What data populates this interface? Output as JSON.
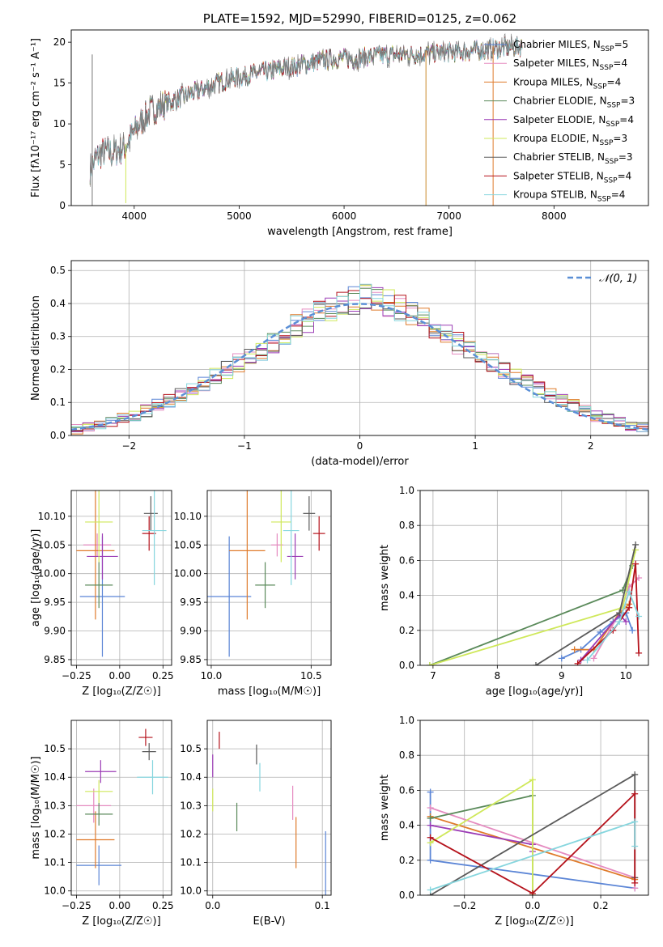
{
  "colors": {
    "chabrier_miles": "#5b85d6",
    "salpeter_miles": "#e58bc0",
    "kroupa_miles": "#df7a2a",
    "chabrier_elodie": "#5a8a5a",
    "salpeter_elodie": "#9b3bb5",
    "kroupa_elodie": "#cfe85a",
    "chabrier_stelib": "#5a5a5a",
    "salpeter_stelib": "#b5121b",
    "kroupa_stelib": "#86d6de",
    "gauss": "#5b8fd6"
  },
  "chart_data": [
    {
      "id": "spectrum",
      "type": "line",
      "title": "PLATE=1592, MJD=52990, FIBERID=0125, z=0.062",
      "xlabel": "wavelength [Angstrom, rest frame]",
      "ylabel": "Flux [fλ10⁻¹⁷ erg cm⁻² s⁻¹ A⁻¹]",
      "xlim": [
        3400,
        8900
      ],
      "ylim": [
        0,
        21.5
      ],
      "xticks": [
        "4000",
        "5000",
        "6000",
        "7000",
        "8000"
      ],
      "yticks": [
        "0",
        "5",
        "10",
        "15",
        "20"
      ],
      "grid": false,
      "legend_position": "top-right",
      "legend": [
        {
          "label": "Chabrier MILES, N",
          "sub": "SSP",
          "suffix": "=5",
          "color": "#5b85d6"
        },
        {
          "label": "Salpeter MILES, N",
          "sub": "SSP",
          "suffix": "=4",
          "color": "#e58bc0"
        },
        {
          "label": "Kroupa MILES, N",
          "sub": "SSP",
          "suffix": "=4",
          "color": "#df7a2a"
        },
        {
          "label": "Chabrier ELODIE, N",
          "sub": "SSP",
          "suffix": "=3",
          "color": "#5a8a5a"
        },
        {
          "label": "Salpeter ELODIE, N",
          "sub": "SSP",
          "suffix": "=4",
          "color": "#9b3bb5"
        },
        {
          "label": "Kroupa ELODIE, N",
          "sub": "SSP",
          "suffix": "=3",
          "color": "#cfe85a"
        },
        {
          "label": "Chabrier STELIB, N",
          "sub": "SSP",
          "suffix": "=3",
          "color": "#5a5a5a"
        },
        {
          "label": "Salpeter STELIB, N",
          "sub": "SSP",
          "suffix": "=4",
          "color": "#b5121b"
        },
        {
          "label": "Kroupa STELIB, N",
          "sub": "SSP",
          "suffix": "=4",
          "color": "#86d6de"
        }
      ],
      "envelope": {
        "x": [
          3580,
          3650,
          3700,
          3800,
          3900,
          3950,
          4050,
          4150,
          4300,
          4500,
          4700,
          4900,
          5100,
          5300,
          5500,
          5700,
          5900,
          6100,
          6300,
          6500,
          6700,
          6900,
          7100,
          7300,
          7500,
          7700
        ],
        "y": [
          4.5,
          6.0,
          6.5,
          6.5,
          7.0,
          8.0,
          10.0,
          11.5,
          12.5,
          13.5,
          14.5,
          15.5,
          16.0,
          16.5,
          17.0,
          17.5,
          18.0,
          18.0,
          18.3,
          18.5,
          18.5,
          18.7,
          18.8,
          19.0,
          19.3,
          19.5
        ]
      },
      "spikes": [
        {
          "x": 3600,
          "y0": 0,
          "y1": 18.5
        },
        {
          "x": 3920,
          "y0": 0.3,
          "y1": 7.5
        },
        {
          "x": 6780,
          "y0": 0,
          "y1": 19.0
        },
        {
          "x": 7420,
          "y0": 0,
          "y1": 19.5
        }
      ]
    },
    {
      "id": "residuals",
      "type": "bar",
      "xlabel": "(data-model)/error",
      "ylabel": "Normed distribution",
      "xlim": [
        -2.5,
        2.5
      ],
      "ylim": [
        0,
        0.53
      ],
      "xticks": [
        "−2",
        "−1",
        "0",
        "1",
        "2"
      ],
      "yticks": [
        "0.0",
        "0.1",
        "0.2",
        "0.3",
        "0.4",
        "0.5"
      ],
      "grid": true,
      "legend_position": "top-right",
      "legend_label": "𝒩(0, 1)",
      "bin_width": 0.1,
      "bin_start": -2.5,
      "base": [
        0.02,
        0.025,
        0.03,
        0.04,
        0.05,
        0.06,
        0.075,
        0.09,
        0.105,
        0.12,
        0.14,
        0.16,
        0.18,
        0.2,
        0.22,
        0.24,
        0.26,
        0.28,
        0.31,
        0.33,
        0.35,
        0.37,
        0.385,
        0.4,
        0.41,
        0.42,
        0.41,
        0.4,
        0.385,
        0.37,
        0.35,
        0.33,
        0.3,
        0.28,
        0.26,
        0.24,
        0.22,
        0.2,
        0.18,
        0.16,
        0.14,
        0.12,
        0.105,
        0.09,
        0.075,
        0.06,
        0.05,
        0.04,
        0.03,
        0.025
      ],
      "gaussian": {
        "mean": 0,
        "sigma": 1
      }
    },
    {
      "id": "age_vs_Z",
      "type": "scatter",
      "xlabel": "Z [log₁₀(Z/Z☉)]",
      "ylabel": "age  [log₁₀(age/yr)]",
      "xlim": [
        -0.28,
        0.3
      ],
      "ylim": [
        9.84,
        10.145
      ],
      "xticks": [
        "−0.25",
        "0.00",
        "0.25"
      ],
      "xtick_values": [
        -0.25,
        0.0,
        0.25
      ],
      "yticks": [
        "9.85",
        "9.90",
        "9.95",
        "10.00",
        "10.05",
        "10.10"
      ],
      "ytick_values": [
        9.85,
        9.9,
        9.95,
        10.0,
        10.05,
        10.1
      ],
      "grid": true,
      "points": [
        {
          "c": "chabrier_miles",
          "x": -0.1,
          "xerr": 0.13,
          "y": 9.96,
          "yerr": 0.105
        },
        {
          "c": "salpeter_miles",
          "x": -0.13,
          "xerr": 0.08,
          "y": 10.05,
          "yerr": 0.02
        },
        {
          "c": "kroupa_miles",
          "x": -0.14,
          "xerr": 0.11,
          "y": 10.04,
          "yerr": 0.12
        },
        {
          "c": "chabrier_elodie",
          "x": -0.12,
          "xerr": 0.08,
          "y": 9.98,
          "yerr": 0.04
        },
        {
          "c": "salpeter_elodie",
          "x": -0.1,
          "xerr": 0.09,
          "y": 10.03,
          "yerr": 0.04
        },
        {
          "c": "kroupa_elodie",
          "x": -0.12,
          "xerr": 0.08,
          "y": 10.09,
          "yerr": 0.07
        },
        {
          "c": "chabrier_stelib",
          "x": 0.18,
          "xerr": 0.04,
          "y": 10.105,
          "yerr": 0.03
        },
        {
          "c": "salpeter_stelib",
          "x": 0.17,
          "xerr": 0.04,
          "y": 10.07,
          "yerr": 0.03
        },
        {
          "c": "kroupa_stelib",
          "x": 0.2,
          "xerr": 0.07,
          "y": 10.075,
          "yerr": 0.095
        }
      ]
    },
    {
      "id": "age_vs_mass",
      "type": "scatter",
      "xlabel": "mass [log₁₀(M/M☉)]",
      "ylabel": "",
      "xlim": [
        9.98,
        10.6
      ],
      "ylim": [
        9.84,
        10.145
      ],
      "xticks": [
        "10.0",
        "10.5"
      ],
      "xtick_values": [
        10.0,
        10.5
      ],
      "yticks": [
        "9.85",
        "9.90",
        "9.95",
        "10.00",
        "10.05",
        "10.10"
      ],
      "ytick_values": [
        9.85,
        9.9,
        9.95,
        10.0,
        10.05,
        10.1
      ],
      "grid": true,
      "points": [
        {
          "c": "chabrier_miles",
          "x": 10.09,
          "xerr": 0.11,
          "y": 9.96,
          "yerr": 0.105
        },
        {
          "c": "salpeter_miles",
          "x": 10.33,
          "xerr": 0.03,
          "y": 10.05,
          "yerr": 0.02
        },
        {
          "c": "kroupa_miles",
          "x": 10.18,
          "xerr": 0.09,
          "y": 10.04,
          "yerr": 0.12
        },
        {
          "c": "chabrier_elodie",
          "x": 10.27,
          "xerr": 0.05,
          "y": 9.98,
          "yerr": 0.04
        },
        {
          "c": "salpeter_elodie",
          "x": 10.42,
          "xerr": 0.04,
          "y": 10.03,
          "yerr": 0.04
        },
        {
          "c": "kroupa_elodie",
          "x": 10.35,
          "xerr": 0.05,
          "y": 10.09,
          "yerr": 0.07
        },
        {
          "c": "chabrier_stelib",
          "x": 10.49,
          "xerr": 0.03,
          "y": 10.105,
          "yerr": 0.03
        },
        {
          "c": "salpeter_stelib",
          "x": 10.54,
          "xerr": 0.03,
          "y": 10.07,
          "yerr": 0.03
        },
        {
          "c": "kroupa_stelib",
          "x": 10.4,
          "xerr": 0.04,
          "y": 10.075,
          "yerr": 0.095
        }
      ]
    },
    {
      "id": "massweight_vs_age",
      "type": "line",
      "xlabel": "age  [log₁₀(age/yr)]",
      "ylabel": "mass weight",
      "xlim": [
        6.8,
        10.35
      ],
      "ylim": [
        0,
        1.0
      ],
      "xticks": [
        "7",
        "8",
        "9",
        "10"
      ],
      "xtick_values": [
        7,
        8,
        9,
        10
      ],
      "yticks": [
        "0.0",
        "0.2",
        "0.4",
        "0.6",
        "0.8",
        "1.0"
      ],
      "ytick_values": [
        0,
        0.2,
        0.4,
        0.6,
        0.8,
        1.0
      ],
      "grid": true,
      "series": [
        {
          "c": "chabrier_miles",
          "x": [
            9.0,
            9.3,
            9.6,
            9.8,
            10.0,
            10.1
          ],
          "y": [
            0.04,
            0.09,
            0.19,
            0.25,
            0.3,
            0.2
          ]
        },
        {
          "c": "salpeter_miles",
          "x": [
            9.5,
            9.9,
            10.05,
            10.2
          ],
          "y": [
            0.04,
            0.3,
            0.45,
            0.5
          ]
        },
        {
          "c": "kroupa_miles",
          "x": [
            9.2,
            9.5,
            9.9,
            10.05
          ],
          "y": [
            0.09,
            0.09,
            0.3,
            0.35
          ]
        },
        {
          "c": "chabrier_elodie",
          "x": [
            6.95,
            9.95,
            10.1
          ],
          "y": [
            0.0,
            0.43,
            0.57
          ]
        },
        {
          "c": "salpeter_elodie",
          "x": [
            9.3,
            9.9,
            10.0
          ],
          "y": [
            0.03,
            0.29,
            0.25
          ]
        },
        {
          "c": "kroupa_elodie",
          "x": [
            6.95,
            9.95,
            10.15
          ],
          "y": [
            0.0,
            0.33,
            0.66
          ]
        },
        {
          "c": "chabrier_stelib",
          "x": [
            8.6,
            9.9,
            10.15
          ],
          "y": [
            0.0,
            0.3,
            0.69
          ]
        },
        {
          "c": "salpeter_stelib",
          "x": [
            9.25,
            9.8,
            10.05,
            10.15,
            10.2
          ],
          "y": [
            0.01,
            0.2,
            0.33,
            0.58,
            0.07
          ]
        },
        {
          "c": "kroupa_stelib",
          "x": [
            9.4,
            9.9,
            10.05,
            10.2
          ],
          "y": [
            0.03,
            0.25,
            0.42,
            0.28
          ]
        }
      ]
    },
    {
      "id": "mass_vs_Z",
      "type": "scatter",
      "xlabel": "Z [log₁₀(Z/Z☉)]",
      "ylabel": "mass [log₁₀(M/M☉)]",
      "xlim": [
        -0.28,
        0.3
      ],
      "ylim": [
        9.985,
        10.6
      ],
      "xticks": [
        "−0.25",
        "0.00",
        "0.25"
      ],
      "xtick_values": [
        -0.25,
        0.0,
        0.25
      ],
      "yticks": [
        "10.0",
        "10.1",
        "10.2",
        "10.3",
        "10.4",
        "10.5"
      ],
      "ytick_values": [
        10.0,
        10.1,
        10.2,
        10.3,
        10.4,
        10.5
      ],
      "grid": true,
      "points": [
        {
          "c": "chabrier_miles",
          "x": -0.12,
          "xerr": 0.13,
          "y": 10.09,
          "yerr": 0.07
        },
        {
          "c": "salpeter_miles",
          "x": -0.15,
          "xerr": 0.1,
          "y": 10.3,
          "yerr": 0.06
        },
        {
          "c": "kroupa_miles",
          "x": -0.14,
          "xerr": 0.11,
          "y": 10.18,
          "yerr": 0.1
        },
        {
          "c": "chabrier_elodie",
          "x": -0.12,
          "xerr": 0.08,
          "y": 10.27,
          "yerr": 0.04
        },
        {
          "c": "salpeter_elodie",
          "x": -0.11,
          "xerr": 0.09,
          "y": 10.42,
          "yerr": 0.04
        },
        {
          "c": "kroupa_elodie",
          "x": -0.12,
          "xerr": 0.08,
          "y": 10.35,
          "yerr": 0.04
        },
        {
          "c": "chabrier_stelib",
          "x": 0.17,
          "xerr": 0.04,
          "y": 10.49,
          "yerr": 0.03
        },
        {
          "c": "salpeter_stelib",
          "x": 0.15,
          "xerr": 0.04,
          "y": 10.54,
          "yerr": 0.03
        },
        {
          "c": "kroupa_stelib",
          "x": 0.19,
          "xerr": 0.09,
          "y": 10.4,
          "yerr": 0.06
        }
      ]
    },
    {
      "id": "mass_vs_ebv",
      "type": "scatter",
      "xlabel": "E(B-V)",
      "ylabel": "",
      "xlim": [
        -0.005,
        0.108
      ],
      "ylim": [
        9.985,
        10.6
      ],
      "xticks": [
        "0.0",
        "0.1"
      ],
      "xtick_values": [
        0.0,
        0.1
      ],
      "yticks": [
        "10.0",
        "10.1",
        "10.2",
        "10.3",
        "10.4",
        "10.5"
      ],
      "ytick_values": [
        10.0,
        10.1,
        10.2,
        10.3,
        10.4,
        10.5
      ],
      "grid": true,
      "points": [
        {
          "c": "chabrier_miles",
          "x": 0.103,
          "xerr": 0,
          "y": 10.09,
          "yerr": 0.12
        },
        {
          "c": "salpeter_miles",
          "x": 0.073,
          "xerr": 0,
          "y": 10.31,
          "yerr": 0.06
        },
        {
          "c": "kroupa_miles",
          "x": 0.076,
          "xerr": 0,
          "y": 10.17,
          "yerr": 0.09
        },
        {
          "c": "chabrier_elodie",
          "x": 0.022,
          "xerr": 0,
          "y": 10.26,
          "yerr": 0.05
        },
        {
          "c": "salpeter_elodie",
          "x": 0.0,
          "xerr": 0,
          "y": 10.44,
          "yerr": 0.04
        },
        {
          "c": "kroupa_elodie",
          "x": 0.0,
          "xerr": 0,
          "y": 10.32,
          "yerr": 0.04
        },
        {
          "c": "chabrier_stelib",
          "x": 0.04,
          "xerr": 0,
          "y": 10.48,
          "yerr": 0.035
        },
        {
          "c": "salpeter_stelib",
          "x": 0.006,
          "xerr": 0,
          "y": 10.53,
          "yerr": 0.03
        },
        {
          "c": "kroupa_stelib",
          "x": 0.043,
          "xerr": 0,
          "y": 10.4,
          "yerr": 0.05
        }
      ]
    },
    {
      "id": "massweight_vs_Z",
      "type": "line",
      "xlabel": "Z [log₁₀(Z/Z☉)]",
      "ylabel": "mass weight",
      "xlim": [
        -0.33,
        0.34
      ],
      "ylim": [
        0,
        1.0
      ],
      "xticks": [
        "−0.2",
        "0.0",
        "0.2"
      ],
      "xtick_values": [
        -0.2,
        0.0,
        0.2
      ],
      "yticks": [
        "0.0",
        "0.2",
        "0.4",
        "0.6",
        "0.8",
        "1.0"
      ],
      "ytick_values": [
        0,
        0.2,
        0.4,
        0.6,
        0.8,
        1.0
      ],
      "grid": true,
      "series": [
        {
          "c": "chabrier_miles",
          "x": [
            -0.3,
            -0.3,
            0.3
          ],
          "y": [
            0.59,
            0.2,
            0.04
          ]
        },
        {
          "c": "salpeter_miles",
          "x": [
            -0.3,
            0.3,
            0.3
          ],
          "y": [
            0.5,
            0.1,
            0.04
          ]
        },
        {
          "c": "kroupa_miles",
          "x": [
            -0.3,
            0.3,
            0.3
          ],
          "y": [
            0.45,
            0.09,
            0.1
          ]
        },
        {
          "c": "chabrier_elodie",
          "x": [
            -0.3,
            0.0,
            0.0
          ],
          "y": [
            0.44,
            0.57,
            0.0
          ]
        },
        {
          "c": "salpeter_elodie",
          "x": [
            -0.3,
            0.0,
            0.0
          ],
          "y": [
            0.4,
            0.29,
            0.25
          ]
        },
        {
          "c": "kroupa_elodie",
          "x": [
            -0.3,
            0.0,
            0.0
          ],
          "y": [
            0.3,
            0.66,
            0.0
          ]
        },
        {
          "c": "chabrier_stelib",
          "x": [
            -0.3,
            0.3,
            0.3
          ],
          "y": [
            0.0,
            0.69,
            0.1
          ]
        },
        {
          "c": "salpeter_stelib",
          "x": [
            -0.3,
            0.0,
            0.3,
            0.3
          ],
          "y": [
            0.33,
            0.01,
            0.58,
            0.07
          ]
        },
        {
          "c": "kroupa_stelib",
          "x": [
            -0.3,
            0.3,
            0.3
          ],
          "y": [
            0.03,
            0.42,
            0.28
          ]
        }
      ]
    }
  ]
}
